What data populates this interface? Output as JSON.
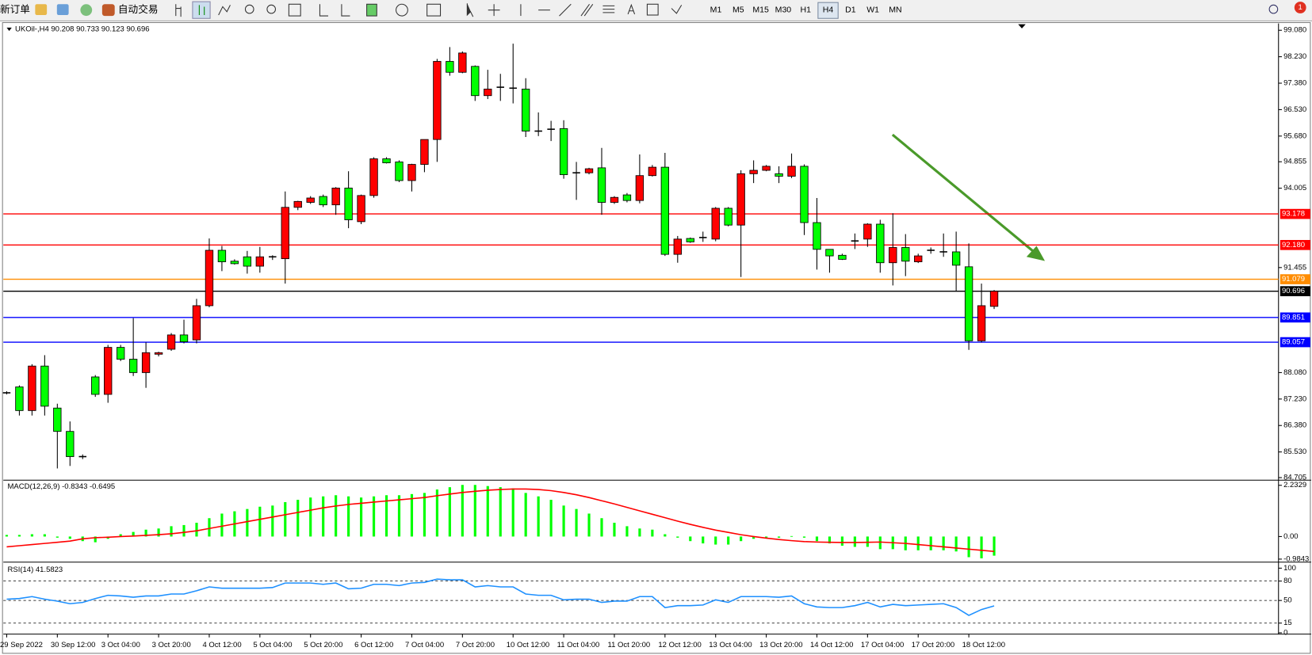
{
  "toolbar": {
    "new_order": "新订单",
    "auto_trading": "自动交易",
    "timeframes": [
      "M1",
      "M5",
      "M15",
      "M30",
      "H1",
      "H4",
      "D1",
      "W1",
      "MN"
    ],
    "active_timeframe": 5,
    "badge": "1"
  },
  "chart_data": [
    {
      "type": "candlestick",
      "title": "UKOil-,H4 90.208 90.733 90.123 90.696",
      "up_color": "#ff0000",
      "down_color": "#00ff00",
      "categories": [
        "29 Sep 2022",
        null,
        null,
        null,
        "30 Sep 12:00",
        null,
        null,
        null,
        "3 Oct 04:00",
        null,
        null,
        null,
        "3 Oct 20:00",
        null,
        null,
        null,
        "4 Oct 12:00",
        null,
        null,
        null,
        "5 Oct 04:00",
        null,
        null,
        null,
        "5 Oct 20:00",
        null,
        null,
        null,
        "6 Oct 12:00",
        null,
        null,
        null,
        "7 Oct 04:00",
        null,
        null,
        null,
        "7 Oct 20:00",
        null,
        null,
        null,
        "10 Oct 12:00",
        null,
        null,
        null,
        "11 Oct 04:00",
        null,
        null,
        null,
        "11 Oct 20:00",
        null,
        null,
        null,
        "12 Oct 12:00",
        null,
        null,
        null,
        "13 Oct 04:00",
        null,
        null,
        null,
        "13 Oct 20:00",
        null,
        null,
        null,
        "14 Oct 12:00",
        null,
        null,
        null,
        "17 Oct 04:00",
        null,
        null,
        null,
        "17 Oct 20:00",
        null,
        null,
        null,
        "18 Oct 12:00",
        null,
        null
      ],
      "open": [
        87.43,
        87.62,
        86.86,
        88.29,
        86.94,
        86.19,
        85.38,
        87.94,
        87.38,
        88.89,
        88.51,
        88.08,
        88.67,
        88.83,
        89.29,
        89.13,
        90.23,
        92.01,
        91.66,
        91.8,
        91.5,
        91.8,
        91.74,
        93.39,
        93.55,
        93.74,
        93.47,
        94.01,
        92.93,
        93.77,
        94.95,
        94.85,
        94.25,
        94.77,
        95.57,
        98.08,
        97.73,
        97.92,
        96.98,
        97.25,
        97.22,
        97.19,
        95.84,
        95.9,
        95.92,
        94.5,
        94.5,
        94.66,
        93.55,
        93.79,
        93.61,
        94.41,
        94.68,
        91.88,
        92.39,
        92.42,
        92.37,
        93.36,
        92.82,
        94.47,
        94.58,
        94.47,
        94.39,
        94.71,
        92.9,
        92.04,
        91.85,
        92.31,
        92.37,
        92.85,
        91.61,
        92.1,
        91.64,
        92.01,
        91.96,
        91.96,
        91.48,
        89.1,
        90.208
      ],
      "high": [
        87.48,
        87.67,
        88.35,
        88.64,
        87.08,
        86.51,
        85.45,
        88.0,
        88.97,
        88.97,
        89.83,
        89.05,
        88.75,
        89.35,
        89.78,
        90.45,
        92.39,
        92.15,
        91.72,
        91.99,
        92.12,
        91.85,
        93.9,
        93.6,
        93.75,
        93.8,
        94.04,
        94.55,
        93.8,
        95.0,
        95.0,
        94.9,
        94.79,
        95.57,
        98.16,
        98.54,
        98.4,
        97.95,
        97.81,
        97.68,
        98.65,
        97.54,
        96.44,
        96.17,
        96.19,
        94.85,
        94.66,
        95.3,
        93.75,
        93.85,
        95.09,
        94.75,
        95.14,
        92.47,
        92.42,
        92.61,
        93.4,
        93.4,
        94.58,
        94.9,
        94.75,
        94.71,
        95.12,
        94.77,
        93.69,
        92.04,
        91.9,
        92.55,
        92.88,
        92.99,
        93.2,
        92.53,
        91.9,
        92.1,
        92.55,
        92.61,
        92.23,
        90.94,
        90.733
      ],
      "low": [
        87.38,
        86.7,
        86.7,
        86.7,
        85.0,
        85.08,
        85.3,
        87.3,
        87.11,
        88.45,
        87.97,
        87.59,
        88.6,
        88.78,
        89.02,
        89.02,
        90.18,
        91.34,
        91.55,
        91.26,
        91.29,
        91.7,
        90.94,
        93.3,
        93.5,
        93.4,
        93.15,
        92.72,
        92.85,
        93.7,
        94.8,
        94.2,
        93.9,
        94.52,
        94.85,
        97.62,
        97.7,
        96.81,
        96.87,
        96.81,
        96.73,
        95.65,
        95.68,
        95.52,
        94.31,
        93.63,
        94.45,
        93.15,
        93.5,
        93.55,
        93.52,
        94.38,
        91.83,
        91.61,
        92.25,
        92.28,
        92.3,
        92.78,
        91.15,
        94.17,
        94.55,
        94.17,
        94.33,
        92.5,
        91.39,
        91.29,
        91.7,
        92.05,
        92.12,
        91.29,
        90.88,
        91.18,
        91.6,
        91.9,
        91.8,
        90.69,
        88.81,
        89.05,
        90.123
      ],
      "close": [
        87.43,
        86.86,
        88.29,
        87.0,
        86.19,
        85.38,
        85.35,
        87.38,
        88.89,
        88.51,
        88.08,
        88.72,
        88.72,
        89.29,
        89.07,
        90.23,
        92.01,
        91.64,
        91.58,
        91.5,
        91.8,
        91.8,
        93.39,
        93.58,
        93.69,
        93.47,
        94.01,
        92.99,
        93.77,
        94.95,
        94.82,
        94.25,
        94.77,
        95.57,
        98.08,
        97.73,
        98.35,
        96.98,
        97.19,
        97.25,
        97.22,
        95.84,
        95.84,
        95.9,
        94.44,
        94.5,
        94.63,
        93.55,
        93.71,
        93.61,
        94.41,
        94.68,
        91.88,
        92.37,
        92.28,
        92.42,
        93.36,
        92.82,
        94.47,
        94.58,
        94.71,
        94.39,
        94.71,
        92.9,
        92.04,
        91.83,
        91.72,
        92.31,
        92.85,
        91.61,
        92.1,
        91.66,
        91.83,
        92.01,
        91.96,
        91.53,
        89.1,
        90.23,
        90.696
      ],
      "ylim": [
        84.65,
        99.3
      ],
      "yticks": [
        {
          "value": 99.08,
          "label": "99.080"
        },
        {
          "value": 98.23,
          "label": "98.230"
        },
        {
          "value": 97.38,
          "label": "97.380"
        },
        {
          "value": 96.53,
          "label": "96.530"
        },
        {
          "value": 95.68,
          "label": "95.680"
        },
        94.855,
        94.005,
        91.455,
        {
          "value": 88.08,
          "label": "88.080"
        },
        {
          "value": 87.23,
          "label": "87.230"
        },
        {
          "value": 86.38,
          "label": "86.380"
        },
        {
          "value": 85.53,
          "label": "85.530"
        },
        84.705
      ],
      "levels": [
        {
          "value": 93.178,
          "color": "#ff0000"
        },
        {
          "value": 92.18,
          "label": "92.180",
          "color": "#ff0000"
        },
        {
          "value": 91.079,
          "color": "#ff8c00"
        },
        {
          "value": 90.696,
          "color": "#000000"
        },
        {
          "value": 89.851,
          "color": "#0000ff"
        },
        {
          "value": 89.057,
          "color": "#0000ff"
        }
      ]
    },
    {
      "type": "macd",
      "title": "MACD(12,26,9) -0.8343 -0.6495",
      "color": "#00ff00",
      "signal_color": "#ff0000",
      "values": [
        0.07,
        0.07,
        0.1,
        0.1,
        -0.05,
        -0.1,
        -0.2,
        -0.25,
        -0.1,
        0.1,
        0.2,
        0.3,
        0.35,
        0.45,
        0.5,
        0.6,
        0.8,
        1.0,
        1.1,
        1.2,
        1.3,
        1.35,
        1.5,
        1.6,
        1.7,
        1.75,
        1.8,
        1.75,
        1.7,
        1.75,
        1.8,
        1.8,
        1.85,
        1.9,
        2.05,
        2.15,
        2.25,
        2.25,
        2.2,
        2.15,
        2.1,
        1.9,
        1.75,
        1.6,
        1.35,
        1.2,
        1.0,
        0.8,
        0.6,
        0.45,
        0.35,
        0.3,
        0.1,
        -0.05,
        -0.2,
        -0.3,
        -0.35,
        -0.35,
        -0.2,
        -0.1,
        -0.05,
        -0.05,
        0.02,
        -0.05,
        -0.2,
        -0.3,
        -0.4,
        -0.45,
        -0.45,
        -0.55,
        -0.55,
        -0.6,
        -0.6,
        -0.6,
        -0.6,
        -0.65,
        -0.9,
        -0.95,
        -0.8343
      ],
      "signal": [
        -0.45,
        -0.4,
        -0.35,
        -0.3,
        -0.25,
        -0.2,
        -0.1,
        -0.05,
        -0.03,
        0.0,
        0.02,
        0.05,
        0.08,
        0.12,
        0.18,
        0.25,
        0.35,
        0.45,
        0.55,
        0.65,
        0.75,
        0.85,
        0.95,
        1.05,
        1.15,
        1.25,
        1.33,
        1.4,
        1.45,
        1.5,
        1.55,
        1.6,
        1.65,
        1.7,
        1.78,
        1.85,
        1.92,
        1.97,
        2.02,
        2.05,
        2.07,
        2.07,
        2.05,
        2.0,
        1.92,
        1.82,
        1.7,
        1.56,
        1.42,
        1.27,
        1.12,
        0.97,
        0.82,
        0.67,
        0.53,
        0.4,
        0.28,
        0.18,
        0.08,
        0.0,
        -0.07,
        -0.13,
        -0.18,
        -0.22,
        -0.24,
        -0.25,
        -0.26,
        -0.26,
        -0.25,
        -0.24,
        -0.27,
        -0.3,
        -0.35,
        -0.4,
        -0.45,
        -0.5,
        -0.55,
        -0.6,
        -0.6495
      ],
      "ylim": [
        -1.08,
        2.42
      ],
      "yticks": [
        2.2329,
        {
          "value": 0,
          "label": "0.00"
        },
        -0.9843
      ]
    },
    {
      "type": "line",
      "title": "RSI(14) 41.5823",
      "color": "#1e90ff",
      "values": [
        52,
        53,
        56,
        52,
        49,
        45,
        47,
        53,
        58,
        57,
        55,
        57,
        57,
        60,
        60,
        65,
        71,
        69,
        69,
        69,
        69,
        70,
        77,
        77,
        77,
        75,
        77,
        68,
        69,
        75,
        75,
        73,
        77,
        78,
        83,
        82,
        82,
        71,
        73,
        71,
        71,
        60,
        58,
        58,
        51,
        52,
        52,
        47,
        49,
        49,
        56,
        56,
        39,
        42,
        42,
        43,
        51,
        47,
        56,
        56,
        56,
        55,
        57,
        45,
        40,
        39,
        39,
        42,
        47,
        40,
        44,
        42,
        43,
        44,
        45,
        39,
        27,
        36,
        41.5823
      ],
      "ylim": [
        -2,
        108
      ],
      "yticks": [
        100,
        80,
        50,
        15,
        0
      ],
      "levels": [
        80,
        50,
        15
      ]
    }
  ]
}
